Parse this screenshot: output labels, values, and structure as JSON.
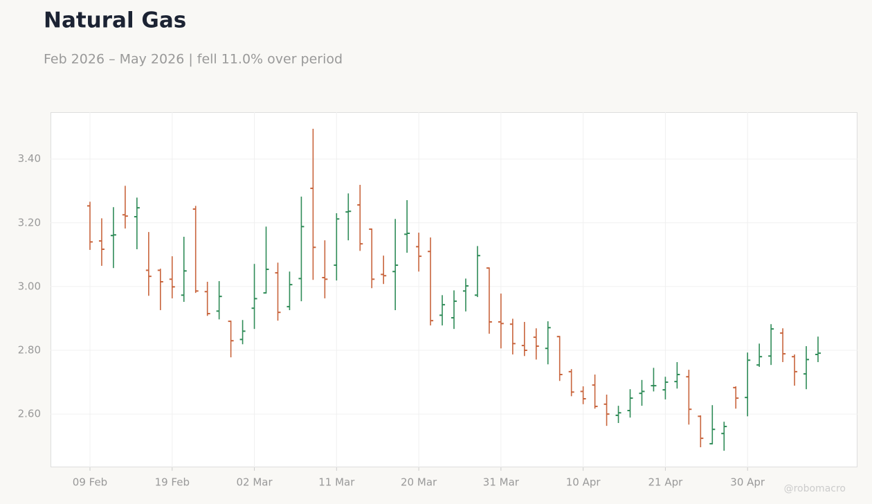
{
  "chart_data": {
    "type": "ohlc",
    "title": "Natural Gas",
    "subtitle": "Feb 2026 – May 2026 | fell 11.0% over period",
    "footer": "@robomacro",
    "categories": [
      "09 Feb",
      null,
      null,
      null,
      null,
      null,
      null,
      "19 Feb",
      null,
      null,
      null,
      null,
      null,
      null,
      "02 Mar",
      null,
      null,
      null,
      null,
      null,
      null,
      "11 Mar",
      null,
      null,
      null,
      null,
      null,
      null,
      "20 Mar",
      null,
      null,
      null,
      null,
      null,
      null,
      "31 Mar",
      null,
      null,
      null,
      null,
      null,
      null,
      "10 Apr",
      null,
      null,
      null,
      null,
      null,
      null,
      "21 Apr",
      null,
      null,
      null,
      null,
      null,
      null,
      "30 Apr",
      null,
      null,
      null,
      null,
      null,
      null
    ],
    "open": [
      3.253,
      3.143,
      3.16,
      3.225,
      3.219,
      3.051,
      3.051,
      3.023,
      2.973,
      3.243,
      2.984,
      2.923,
      2.891,
      2.834,
      2.932,
      2.98,
      3.043,
      2.937,
      3.025,
      3.308,
      3.028,
      3.067,
      3.234,
      3.256,
      3.18,
      3.038,
      3.047,
      3.164,
      3.125,
      3.11,
      2.91,
      2.902,
      2.986,
      2.973,
      3.058,
      2.889,
      2.882,
      2.815,
      2.841,
      2.806,
      2.843,
      2.733,
      2.671,
      2.691,
      2.631,
      2.596,
      2.611,
      2.665,
      2.689,
      2.676,
      2.702,
      2.717,
      2.593,
      2.507,
      2.539,
      2.683,
      2.652,
      2.754,
      2.782,
      2.854,
      2.78,
      2.726,
      2.787
    ],
    "high": [
      3.266,
      3.214,
      3.249,
      3.316,
      3.279,
      3.171,
      3.056,
      3.095,
      3.156,
      3.253,
      3.015,
      3.017,
      2.893,
      2.895,
      3.071,
      3.188,
      3.075,
      3.047,
      3.282,
      3.495,
      3.145,
      3.23,
      3.292,
      3.319,
      3.182,
      3.097,
      3.212,
      3.271,
      3.169,
      3.154,
      2.973,
      2.988,
      3.025,
      3.127,
      3.06,
      2.978,
      2.899,
      2.889,
      2.869,
      2.891,
      2.845,
      2.741,
      2.687,
      2.724,
      2.661,
      2.626,
      2.678,
      2.707,
      2.745,
      2.717,
      2.763,
      2.739,
      2.596,
      2.628,
      2.576,
      2.687,
      2.793,
      2.821,
      2.882,
      2.869,
      2.787,
      2.813,
      2.843
    ],
    "low": [
      3.115,
      3.065,
      3.058,
      3.182,
      3.117,
      2.971,
      2.926,
      2.963,
      2.952,
      2.98,
      2.908,
      2.897,
      2.778,
      2.819,
      2.867,
      2.978,
      2.893,
      2.926,
      2.954,
      3.021,
      2.963,
      3.019,
      3.145,
      3.112,
      2.995,
      3.008,
      2.926,
      3.106,
      3.047,
      2.878,
      2.878,
      2.867,
      2.922,
      2.967,
      2.852,
      2.806,
      2.787,
      2.782,
      2.771,
      2.756,
      2.704,
      2.656,
      2.631,
      2.617,
      2.563,
      2.572,
      2.589,
      2.626,
      2.671,
      2.646,
      2.68,
      2.567,
      2.496,
      2.505,
      2.485,
      2.617,
      2.593,
      2.748,
      2.754,
      2.763,
      2.689,
      2.678,
      2.763
    ],
    "close": [
      3.14,
      3.117,
      3.162,
      3.221,
      3.247,
      3.032,
      3.015,
      2.999,
      3.049,
      2.986,
      2.915,
      2.969,
      2.83,
      2.86,
      2.962,
      3.054,
      2.919,
      3.006,
      3.188,
      3.123,
      3.023,
      3.212,
      3.236,
      3.134,
      3.023,
      3.034,
      3.067,
      3.167,
      3.095,
      2.893,
      2.943,
      2.954,
      3.002,
      3.097,
      2.889,
      2.884,
      2.821,
      2.8,
      2.813,
      2.871,
      2.724,
      2.669,
      2.648,
      2.624,
      2.6,
      2.604,
      2.65,
      2.671,
      2.689,
      2.7,
      2.724,
      2.615,
      2.524,
      2.552,
      2.561,
      2.65,
      2.769,
      2.78,
      2.867,
      2.789,
      2.733,
      2.771,
      2.791
    ],
    "up_color": "#2e8b57",
    "down_color": "#c8643c",
    "ylim": [
      2.433,
      3.547
    ],
    "yticks": [
      {
        "value": 2.6,
        "label": "2.60"
      },
      {
        "value": 2.8,
        "label": "2.80"
      },
      {
        "value": 3.0,
        "label": "3.00"
      },
      {
        "value": 3.2,
        "label": "3.20"
      },
      {
        "value": 3.4,
        "label": "3.40"
      }
    ],
    "grid": true
  }
}
